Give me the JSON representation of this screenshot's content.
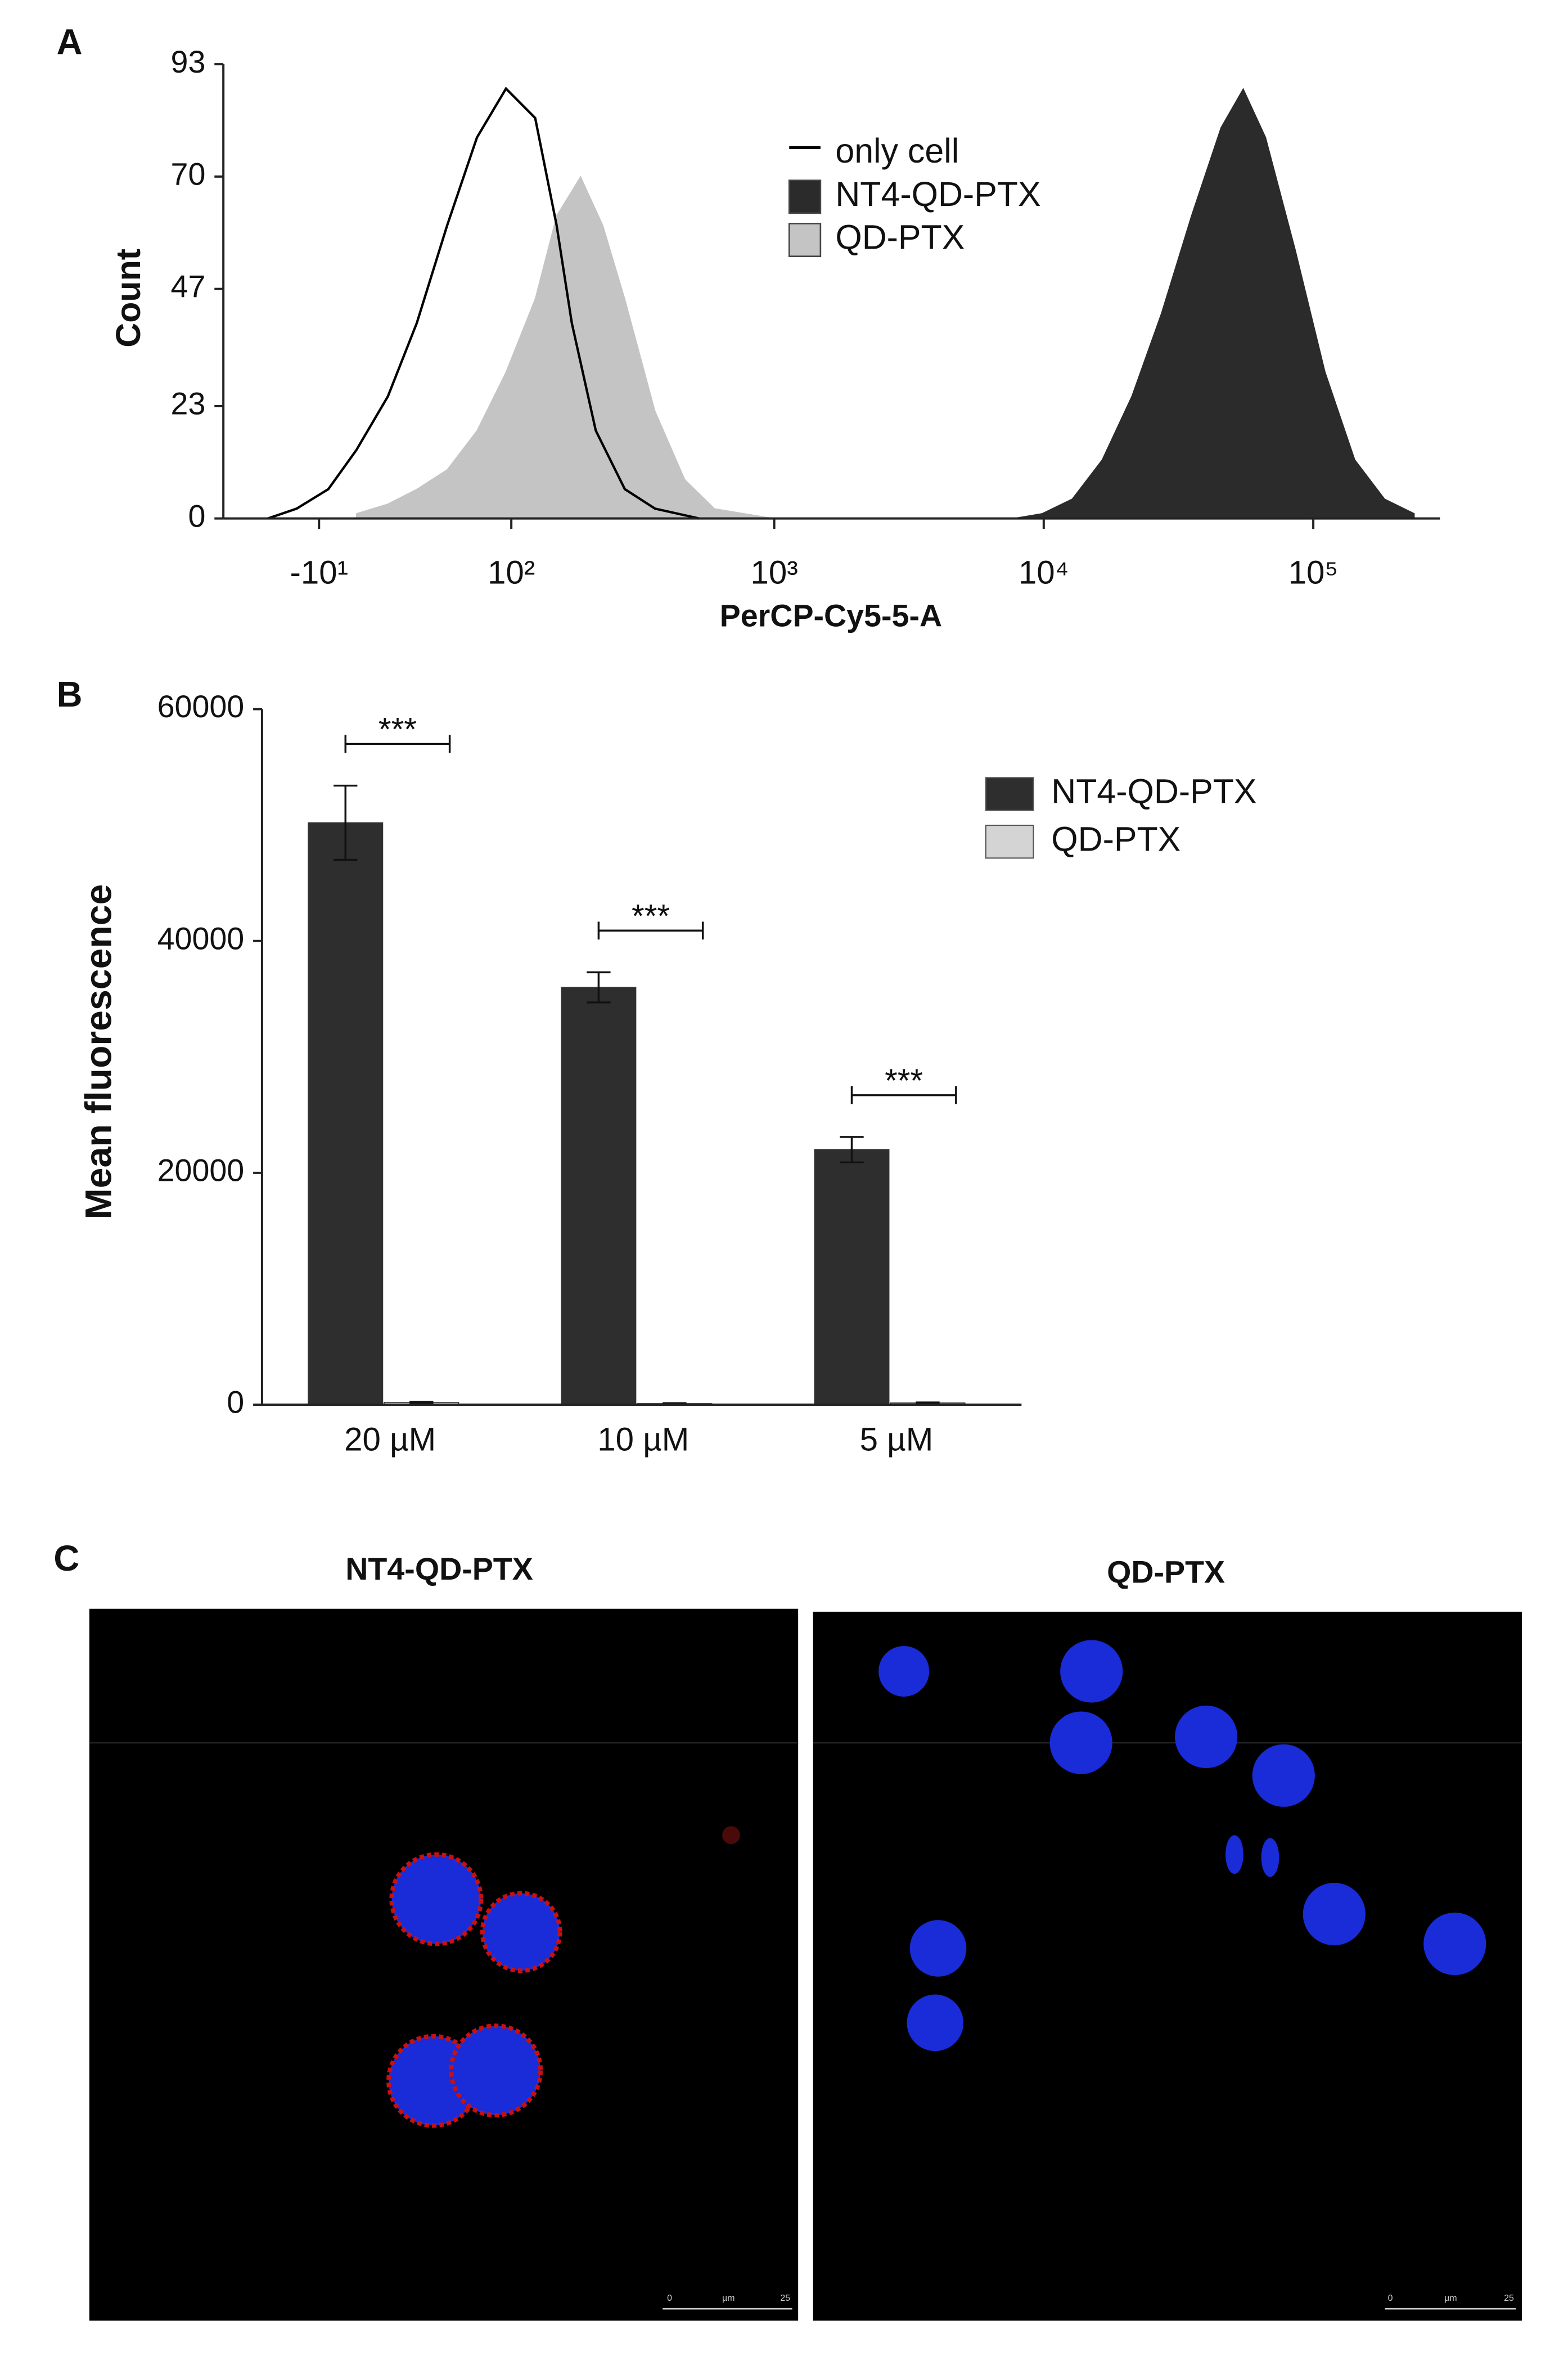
{
  "panel_labels": [
    "A",
    "B",
    "C"
  ],
  "chart_data": [
    {
      "type": "area",
      "xlabel": "PerCP-Cy5-5-A",
      "ylabel": "Count",
      "xscale": "biexponential",
      "xlim": [
        -60,
        295000
      ],
      "ylim": [
        0,
        93
      ],
      "xticks": [
        {
          "value": -10,
          "label": "-10¹"
        },
        {
          "value": 100,
          "label": "10²"
        },
        {
          "value": 1000,
          "label": "10³"
        },
        {
          "value": 10000,
          "label": "10⁴"
        },
        {
          "value": 100000,
          "label": "10⁵"
        }
      ],
      "yticks": [
        0,
        23,
        47,
        70,
        93
      ],
      "series": [
        {
          "name": "only cell",
          "color": "#000000",
          "filled": false,
          "x": [
            -34,
            -20,
            -6,
            6,
            20,
            34,
            51,
            71,
            95,
            125,
            152,
            174,
            215,
            277,
            360,
            526
          ],
          "values": [
            0,
            2,
            6,
            14,
            25,
            40,
            60,
            78,
            88,
            82,
            60,
            40,
            18,
            6,
            2,
            0
          ]
        },
        {
          "name": "NT4-QD-PTX",
          "color": "#2b2b2b",
          "filled": true,
          "x": [
            7670,
            9850,
            12750,
            16450,
            21200,
            27300,
            35300,
            45400,
            55000,
            66600,
            85800,
            110700,
            142700,
            184000,
            237000
          ],
          "values": [
            0,
            1,
            4,
            12,
            25,
            42,
            62,
            80,
            88,
            78,
            55,
            30,
            12,
            4,
            1
          ]
        },
        {
          "name": "QD-PTX",
          "color": "#c4c4c4",
          "filled": true,
          "x": [
            6,
            20,
            34,
            51,
            71,
            95,
            125,
            152,
            188,
            229,
            277,
            360,
            465,
            600,
            1000
          ],
          "values": [
            1,
            3,
            6,
            10,
            18,
            30,
            45,
            62,
            70,
            60,
            45,
            22,
            8,
            2,
            0
          ]
        }
      ]
    },
    {
      "type": "bar",
      "ylabel": "Mean fluorescence",
      "categories": [
        "20 µM",
        "10 µM",
        "5 µM"
      ],
      "ylim": [
        0,
        60000
      ],
      "yticks": [
        0,
        20000,
        40000,
        60000
      ],
      "significance": [
        "***",
        "***",
        "***"
      ],
      "series": [
        {
          "name": "NT4-QD-PTX",
          "color": "#2e2e2e",
          "values": [
            50200,
            36000,
            22000
          ],
          "errors": [
            3200,
            1300,
            1100
          ]
        },
        {
          "name": "QD-PTX",
          "color": "#d4d4d4",
          "values": [
            200,
            100,
            150
          ],
          "errors": [
            50,
            30,
            40
          ]
        }
      ]
    }
  ],
  "micrographs": {
    "titles": [
      "NT4-QD-PTX",
      "QD-PTX"
    ],
    "scale_bar": [
      "0",
      "µm",
      "25"
    ]
  }
}
